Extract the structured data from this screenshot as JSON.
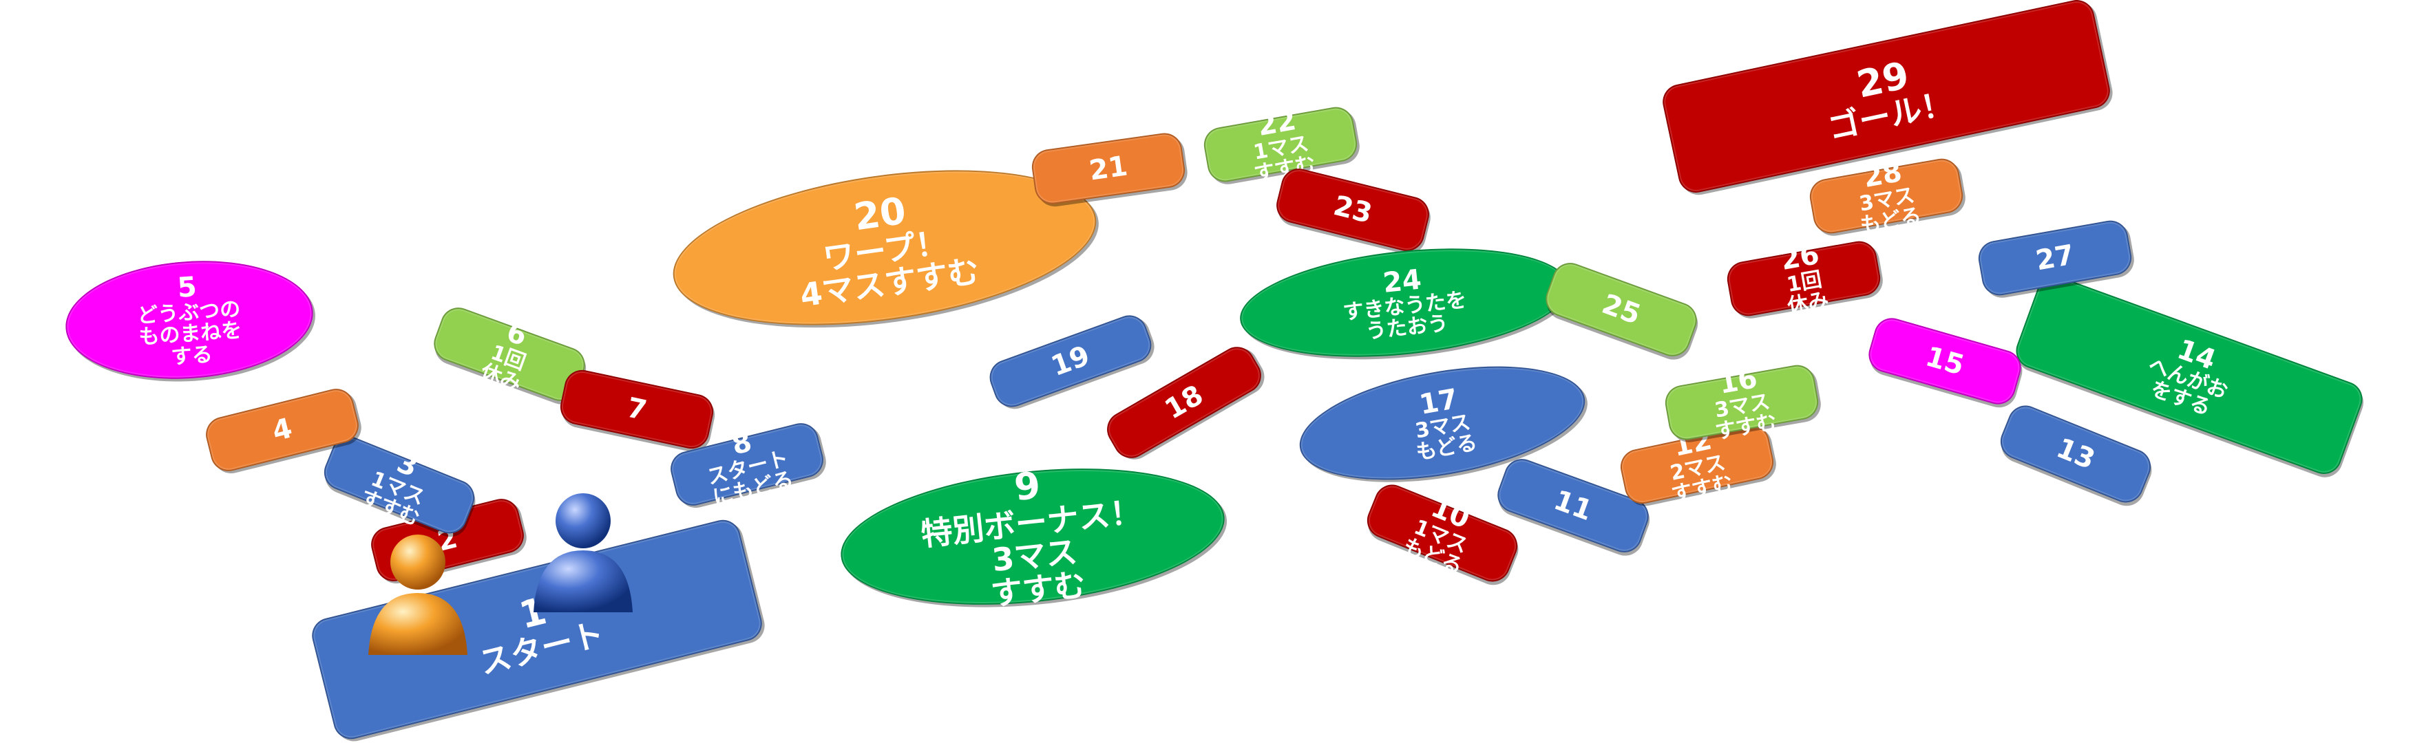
{
  "board": {
    "colors": {
      "red": "#C00000",
      "blue": "#4472C4",
      "green": "#00B050",
      "lime": "#92D050",
      "orange": "#ED7D31",
      "gold": "#F9A23A",
      "magenta": "#FF00FF"
    },
    "squares": [
      {
        "num": "1",
        "text": "スタート",
        "color": "blue",
        "shape": "rect",
        "big": true
      },
      {
        "num": "2",
        "text": "",
        "color": "red",
        "shape": "rect"
      },
      {
        "num": "3",
        "text": "1マス\nすすむ",
        "color": "blue",
        "shape": "rect"
      },
      {
        "num": "4",
        "text": "",
        "color": "orange",
        "shape": "rect"
      },
      {
        "num": "5",
        "text": "どうぶつの\nものまねを\nする",
        "color": "magenta",
        "shape": "ellipse"
      },
      {
        "num": "6",
        "text": "1回\n休み",
        "color": "lime",
        "shape": "rect"
      },
      {
        "num": "7",
        "text": "",
        "color": "red",
        "shape": "rect"
      },
      {
        "num": "8",
        "text": "スタート\nにもどる",
        "color": "blue",
        "shape": "rect"
      },
      {
        "num": "9",
        "text": "特別ボーナス！\n3マス\nすすむ",
        "color": "green",
        "shape": "ellipse",
        "big": true
      },
      {
        "num": "10",
        "text": "1マス\nもどる",
        "color": "red",
        "shape": "rect"
      },
      {
        "num": "11",
        "text": "",
        "color": "blue",
        "shape": "rect"
      },
      {
        "num": "12",
        "text": "2マス\nすすむ",
        "color": "orange",
        "shape": "rect"
      },
      {
        "num": "13",
        "text": "",
        "color": "blue",
        "shape": "rect"
      },
      {
        "num": "14",
        "text": "へんがお\nをする",
        "color": "green",
        "shape": "rect"
      },
      {
        "num": "15",
        "text": "",
        "color": "magenta",
        "shape": "rect"
      },
      {
        "num": "16",
        "text": "3マス\nすすむ",
        "color": "lime",
        "shape": "rect"
      },
      {
        "num": "17",
        "text": "3マス\nもどる",
        "color": "blue",
        "shape": "ellipse"
      },
      {
        "num": "18",
        "text": "",
        "color": "red",
        "shape": "rect"
      },
      {
        "num": "19",
        "text": "",
        "color": "blue",
        "shape": "rect"
      },
      {
        "num": "20",
        "text": "ワープ！\n4マスすすむ",
        "color": "gold",
        "shape": "ellipse",
        "big": true
      },
      {
        "num": "21",
        "text": "",
        "color": "orange",
        "shape": "rect"
      },
      {
        "num": "22",
        "text": "1マス\nすすむ",
        "color": "lime",
        "shape": "rect"
      },
      {
        "num": "23",
        "text": "",
        "color": "red",
        "shape": "rect"
      },
      {
        "num": "24",
        "text": "すきなうたを\nうたおう",
        "color": "green",
        "shape": "ellipse"
      },
      {
        "num": "25",
        "text": "",
        "color": "lime",
        "shape": "rect"
      },
      {
        "num": "26",
        "text": "1回\n休み",
        "color": "red",
        "shape": "rect"
      },
      {
        "num": "27",
        "text": "",
        "color": "blue",
        "shape": "rect"
      },
      {
        "num": "28",
        "text": "3マス\nもどる",
        "color": "orange",
        "shape": "rect"
      },
      {
        "num": "29",
        "text": "ゴール！",
        "color": "red",
        "shape": "rect",
        "big": true
      }
    ],
    "players": [
      {
        "color": "#F28C0F",
        "name": "orange-player-token"
      },
      {
        "color": "#2F57B7",
        "name": "blue-player-token"
      }
    ]
  }
}
